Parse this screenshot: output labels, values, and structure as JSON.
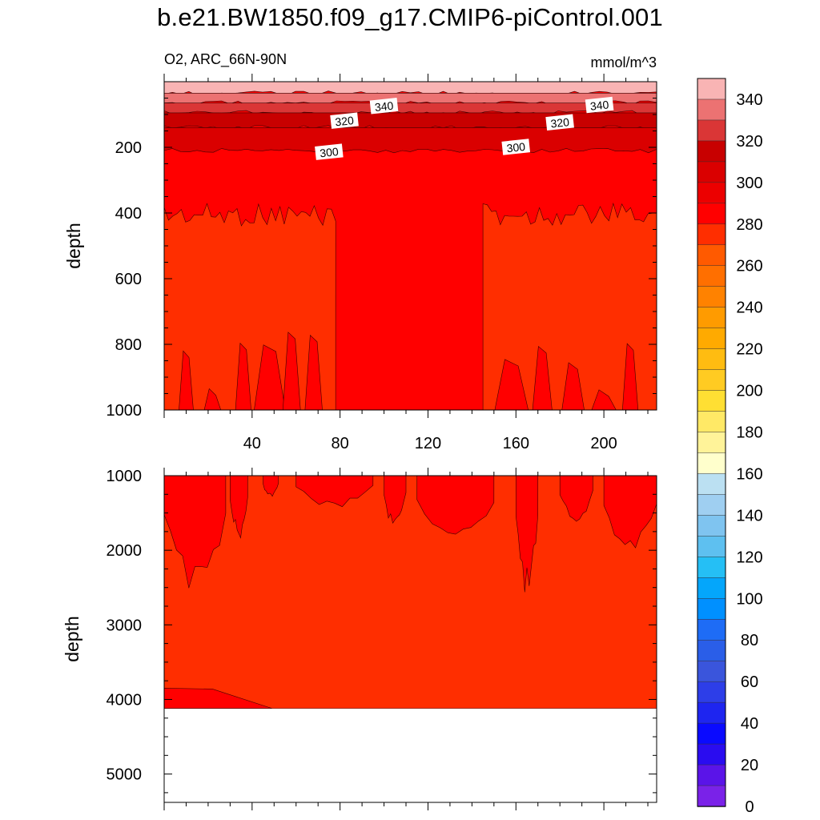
{
  "title": "b.e21.BW1850.f09_g17.CMIP6-piControl.001",
  "subtitle_left": "O2, ARC_66N-90N",
  "subtitle_right": "mmol/m^3",
  "chart_data": [
    {
      "type": "heatmap",
      "panel": "upper",
      "xlabel": "",
      "ylabel": "depth",
      "xlim": [
        0,
        224
      ],
      "ylim": [
        1000,
        0
      ],
      "xticks": [
        "40",
        "80",
        "120",
        "160",
        "200"
      ],
      "yticks": [
        "200",
        "400",
        "600",
        "800",
        "1000"
      ],
      "contour_labels": [
        {
          "text": "340",
          "x": 100,
          "y": 75
        },
        {
          "text": "340",
          "x": 198,
          "y": 72
        },
        {
          "text": "320",
          "x": 82,
          "y": 120
        },
        {
          "text": "320",
          "x": 180,
          "y": 125
        },
        {
          "text": "300",
          "x": 75,
          "y": 215
        },
        {
          "text": "300",
          "x": 160,
          "y": 200
        }
      ],
      "layers": [
        {
          "value": 350,
          "depth_top": 0,
          "depth_bottom": 35
        },
        {
          "value": 340,
          "depth_top": 35,
          "depth_bottom": 65
        },
        {
          "value": 330,
          "depth_top": 65,
          "depth_bottom": 95
        },
        {
          "value": 320,
          "depth_top": 95,
          "depth_bottom": 140
        },
        {
          "value": 310,
          "depth_top": 140,
          "depth_bottom": 210
        },
        {
          "value": 300,
          "depth_top": 210,
          "depth_bottom": 1000
        }
      ]
    },
    {
      "type": "heatmap",
      "panel": "lower",
      "xlabel": "",
      "ylabel": "depth",
      "xlim": [
        0,
        224
      ],
      "ylim": [
        5380,
        1000
      ],
      "yticks": [
        "1000",
        "2000",
        "3000",
        "4000",
        "5000"
      ],
      "seafloor_depth": 4120,
      "layers": [
        {
          "value": 290,
          "depth_top": 1000,
          "depth_bottom": 4120
        },
        {
          "value": 300,
          "depth_top": 3850,
          "depth_bottom": 4120
        }
      ]
    }
  ],
  "colorbar": {
    "ticks": [
      "340",
      "320",
      "300",
      "280",
      "260",
      "240",
      "220",
      "200",
      "180",
      "160",
      "140",
      "120",
      "100",
      "80",
      "60",
      "40",
      "20",
      "0"
    ],
    "colors": [
      "#f9b4b4",
      "#ec7272",
      "#da3636",
      "#c80000",
      "#da0000",
      "#ec0000",
      "#ff0000",
      "#ff2e00",
      "#ff5a00",
      "#ff6f00",
      "#ff8200",
      "#ff9b00",
      "#ffaa00",
      "#ffbc11",
      "#ffcb22",
      "#ffdf33",
      "#ffe966",
      "#fff399",
      "#ffffcc",
      "#bbe0f2",
      "#9fcff1",
      "#7fc4f0",
      "#5ec0f0",
      "#25bff5",
      "#04a6fb",
      "#0090ff",
      "#1e6cf6",
      "#2a5ee8",
      "#3a55dc",
      "#2d3ee8",
      "#1e25f0",
      "#0a0aff",
      "#2a0cf0",
      "#5a14e8",
      "#7a22e8"
    ]
  }
}
